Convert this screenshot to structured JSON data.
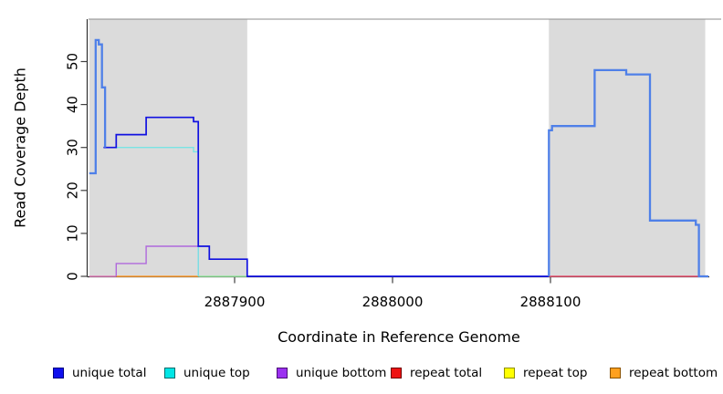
{
  "figure": {
    "y_axis_title": "Read Coverage Depth",
    "x_axis_title": "Coordinate in Reference Genome"
  },
  "legend": {
    "items": [
      {
        "label": "unique total",
        "fill": "#0F0FEE",
        "border": "#000080"
      },
      {
        "label": "unique top",
        "fill": "#00E6E6",
        "border": "#006B6B"
      },
      {
        "label": "unique bottom",
        "fill": "#9B30F0",
        "border": "#4B0E76"
      },
      {
        "label": "repeat total",
        "fill": "#EE1212",
        "border": "#700000"
      },
      {
        "label": "repeat top",
        "fill": "#FFFF00",
        "border": "#8F8F00"
      },
      {
        "label": "repeat bottom",
        "fill": "#FFA01E",
        "border": "#8A5200"
      }
    ]
  },
  "chart_data": {
    "type": "line",
    "style": "step",
    "title": "",
    "xlabel": "Coordinate in Reference Genome",
    "ylabel": "Read Coverage Depth",
    "xlim": [
      2887808,
      2888200
    ],
    "ylim": [
      0,
      60
    ],
    "x_ticks": [
      2887900,
      2888000,
      2888100
    ],
    "y_ticks": [
      0,
      10,
      20,
      30,
      40,
      50
    ],
    "grid": false,
    "legend_position": "bottom",
    "shaded_regions": [
      {
        "from": 2887808,
        "to": 2887908,
        "color": "#DBDBDB"
      },
      {
        "from": 2888099,
        "to": 2888198,
        "color": "#DBDBDB"
      }
    ],
    "series": [
      {
        "name": "repeat bottom",
        "color": "#FF9E30",
        "width": 1.6,
        "segments": [
          [
            [
              2887825,
              0
            ],
            [
              2887877,
              0
            ]
          ]
        ]
      },
      {
        "name": "repeat total",
        "color": "#E8506E",
        "width": 1.4,
        "segments": [
          [
            [
              2888099,
              0
            ],
            [
              2888194,
              0
            ]
          ]
        ]
      },
      {
        "name": "repeat top",
        "color": "#FFFF00",
        "width": 1.4,
        "segments": []
      },
      {
        "name": "unique bottom",
        "color": "#B069DC",
        "width": 1.4,
        "segments": [
          [
            [
              2887825,
              0
            ],
            [
              2887825,
              3
            ],
            [
              2887844,
              3
            ],
            [
              2887844,
              7
            ],
            [
              2887877,
              7
            ],
            [
              2887877,
              0
            ]
          ]
        ]
      },
      {
        "name": "unique top",
        "color": "#7AE4E4",
        "width": 1.4,
        "segments": [
          [
            [
              2887817,
              30
            ],
            [
              2887874,
              30
            ],
            [
              2887874,
              29
            ],
            [
              2887877,
              29
            ],
            [
              2887877,
              0
            ]
          ]
        ]
      },
      {
        "name": "unique total",
        "color": "#1111E0",
        "width": 1.7,
        "segments": [
          [
            [
              2887817,
              30
            ],
            [
              2887825,
              30
            ],
            [
              2887825,
              33
            ],
            [
              2887844,
              33
            ],
            [
              2887844,
              37
            ],
            [
              2887874,
              37
            ],
            [
              2887874,
              36
            ],
            [
              2887877,
              36
            ],
            [
              2887877,
              7
            ],
            [
              2887884,
              7
            ],
            [
              2887884,
              4
            ],
            [
              2887908,
              4
            ],
            [
              2887908,
              0
            ],
            [
              2888099,
              0
            ]
          ]
        ]
      },
      {
        "name": "total coverage (unlabeled light blue)",
        "color": "#4F80E8",
        "width": 2.3,
        "segments": [
          [
            [
              2887808,
              24
            ],
            [
              2887812,
              24
            ],
            [
              2887812,
              55
            ],
            [
              2887814,
              55
            ],
            [
              2887814,
              54
            ],
            [
              2887816,
              54
            ],
            [
              2887816,
              44
            ],
            [
              2887818,
              44
            ],
            [
              2887818,
              30
            ]
          ],
          [
            [
              2888099,
              0
            ],
            [
              2888099,
              34
            ],
            [
              2888101,
              34
            ],
            [
              2888101,
              35
            ],
            [
              2888128,
              35
            ],
            [
              2888128,
              48
            ],
            [
              2888148,
              48
            ],
            [
              2888148,
              47
            ],
            [
              2888163,
              47
            ],
            [
              2888163,
              13
            ],
            [
              2888192,
              13
            ],
            [
              2888192,
              12
            ],
            [
              2888194,
              12
            ],
            [
              2888194,
              0
            ],
            [
              2888200,
              0
            ]
          ]
        ]
      }
    ],
    "zero_line_overlap_segments": [
      {
        "from": 2887808,
        "to": 2887825,
        "color": "#DE7CB8"
      },
      {
        "from": 2887877,
        "to": 2887908,
        "color": "#98E8A0"
      }
    ]
  }
}
